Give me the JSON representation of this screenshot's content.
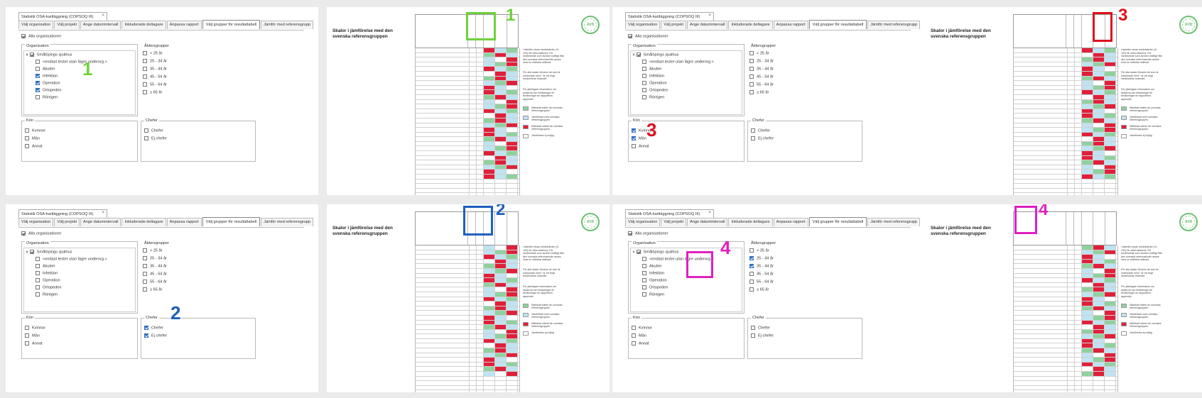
{
  "dialog": {
    "window_title": "Statistik OSA-kartläggning (COPSOQ III)",
    "tabs": [
      "Välj organisation",
      "Välj projekt",
      "Ange datumintervall",
      "Inkluderade deltagare",
      "Anpassa rapport",
      "Välj grupper för resultattabell",
      "Jämför med referensgrupp"
    ],
    "all_orgs": "Alla organisationer",
    "org_group": "Organisation",
    "org_root": "Smålöpings sjukhus",
    "org_items": [
      "<endast tester utan lägre underorg.>",
      "Akuten",
      "Infektion",
      "Operation",
      "Ortopeden",
      "Röntgen"
    ],
    "age_group": "Åldersgrupper",
    "age_items": [
      "< 25 år",
      "25 - 34 år",
      "35 - 44 år",
      "45 - 54 år",
      "55 - 64 år",
      "≥ 65 år"
    ],
    "gender_group": "Kön",
    "gender_items": [
      "Kvinnor",
      "Män",
      "Annat"
    ],
    "chef_group": "Chefer",
    "chef_items": [
      "Chefer",
      "Ej chefer"
    ]
  },
  "report": {
    "title": "Skalor i jämförelse med den svenska referensgruppen",
    "note1": "I tabellen visas medelvärden (0-100) för olika skalorna. Ett medelvärde som avviker kraftigt från den svenska referensnivån anses vara en märkbar skillnad.",
    "note2": "För alla skalor förutom de som är markerade med * är ett högt medelvärde önskvärt.",
    "note3": "För ytterligare information om skalorna och förklaringar till beräkningar se rapportens appendix.",
    "legend": [
      {
        "label": "Märkbart bättre än svenska referensgruppen",
        "color": "#8fd19e"
      },
      {
        "label": "Jämförbart med svenska referensgruppen",
        "color": "#bfe3f2"
      },
      {
        "label": "Märkbart sämre än svenska referensgruppen",
        "color": "#e0203a"
      },
      {
        "label": "Jämförelse ej möjlig",
        "color": "#ffffff"
      }
    ],
    "seal_text": "AVB"
  },
  "panels": [
    {
      "number": "1",
      "color": "#6fd13a"
    },
    {
      "number": "2",
      "color": "#1f5fbf"
    },
    {
      "number": "3",
      "color": "#e0101e"
    },
    {
      "number": "4",
      "color": "#e020c0"
    }
  ],
  "colors": {
    "accent_check": "#2f6fbf"
  }
}
